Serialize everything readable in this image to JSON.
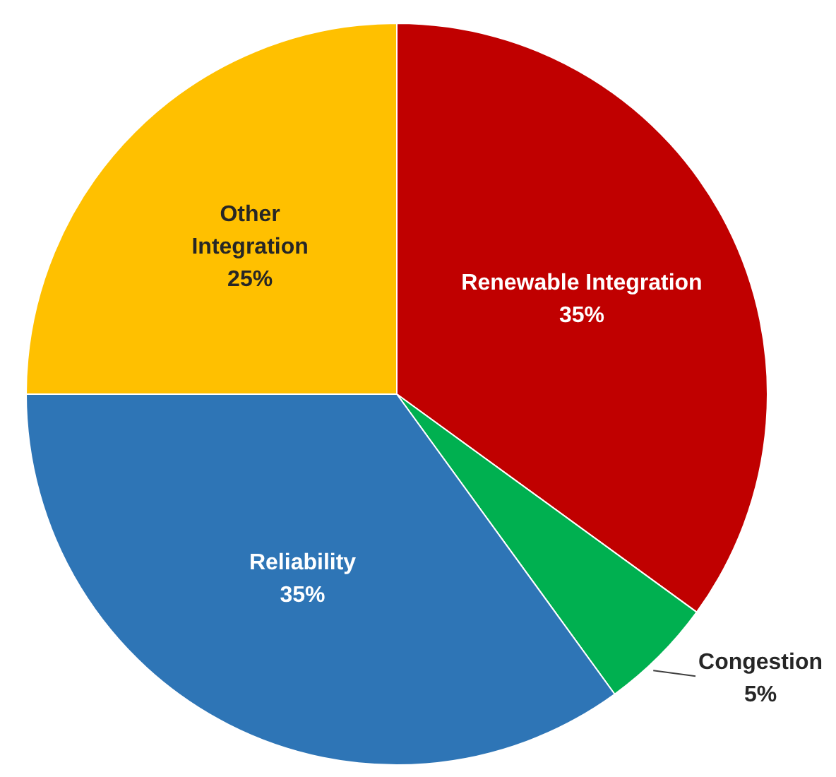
{
  "chart_data": {
    "type": "pie",
    "categories": [
      "Renewable Integration",
      "Congestion",
      "Reliability",
      "Other Integration"
    ],
    "values": [
      35,
      5,
      35,
      25
    ],
    "value_labels": [
      "35%",
      "5%",
      "35%",
      "25%"
    ],
    "colors": [
      "#c00000",
      "#00b050",
      "#2e75b6",
      "#ffc000"
    ],
    "legend": false
  }
}
